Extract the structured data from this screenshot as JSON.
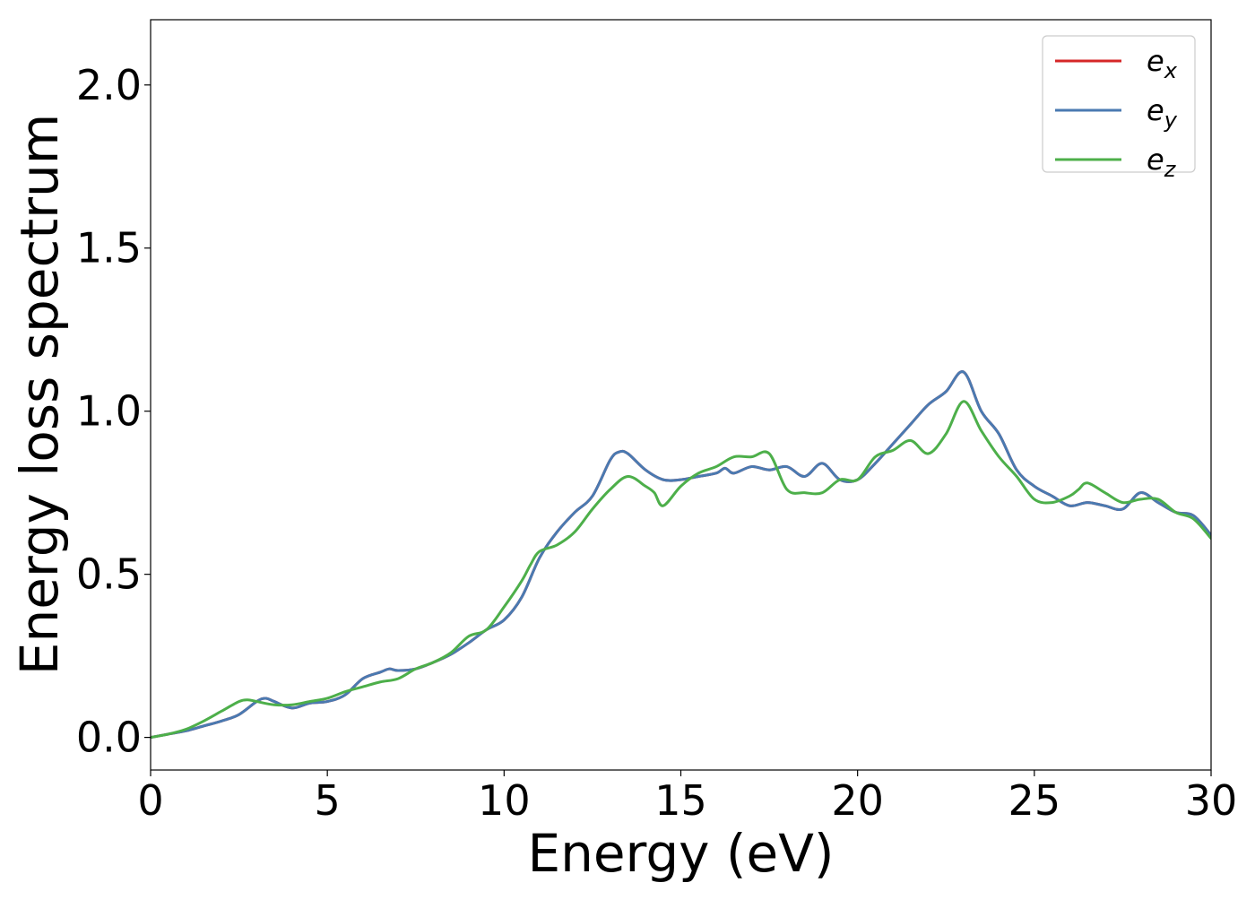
{
  "chart_data": {
    "type": "line",
    "title": "",
    "xlabel": "Energy (eV)",
    "ylabel": "Energy loss spectrum",
    "xlim": [
      0,
      30
    ],
    "ylim": [
      -0.1,
      2.2
    ],
    "xticks": [
      0,
      5,
      10,
      15,
      20,
      25,
      30
    ],
    "xtick_labels": [
      "0",
      "5",
      "10",
      "15",
      "20",
      "25",
      "30"
    ],
    "yticks": [
      0.0,
      0.5,
      1.0,
      1.5,
      2.0
    ],
    "ytick_labels": [
      "0.0",
      "0.5",
      "1.0",
      "1.5",
      "2.0"
    ],
    "grid": false,
    "legend_position": "top-right",
    "series": [
      {
        "name": "e",
        "subscript": "x",
        "color": "#d62728",
        "x": [
          0,
          0.5,
          1,
          1.5,
          2,
          2.5,
          3,
          3.25,
          3.5,
          4,
          4.5,
          5,
          5.5,
          6,
          6.5,
          6.75,
          7,
          7.5,
          8,
          8.5,
          9,
          9.5,
          10,
          10.5,
          11,
          11.5,
          12,
          12.5,
          13,
          13.25,
          13.5,
          14,
          14.5,
          15,
          15.5,
          16,
          16.25,
          16.5,
          17,
          17.5,
          18,
          18.5,
          19,
          19.5,
          20,
          20.5,
          21,
          21.5,
          22,
          22.5,
          23,
          23.5,
          24,
          24.5,
          25,
          25.5,
          26,
          26.5,
          27,
          27.5,
          28,
          28.5,
          29,
          29.5,
          30
        ],
        "y": [
          0.0,
          0.01,
          0.02,
          0.035,
          0.05,
          0.07,
          0.11,
          0.12,
          0.11,
          0.09,
          0.105,
          0.11,
          0.13,
          0.18,
          0.2,
          0.21,
          0.205,
          0.21,
          0.23,
          0.255,
          0.29,
          0.33,
          0.36,
          0.43,
          0.55,
          0.63,
          0.69,
          0.74,
          0.85,
          0.875,
          0.87,
          0.82,
          0.79,
          0.79,
          0.8,
          0.81,
          0.825,
          0.81,
          0.83,
          0.82,
          0.83,
          0.8,
          0.84,
          0.79,
          0.79,
          0.84,
          0.9,
          0.96,
          1.02,
          1.06,
          1.12,
          1.0,
          0.93,
          0.82,
          0.77,
          0.74,
          0.71,
          0.72,
          0.71,
          0.7,
          0.75,
          0.72,
          0.69,
          0.68,
          0.62
        ]
      },
      {
        "name": "e",
        "subscript": "y",
        "color": "#4a7ab1",
        "x": [
          0,
          0.5,
          1,
          1.5,
          2,
          2.5,
          3,
          3.25,
          3.5,
          4,
          4.5,
          5,
          5.5,
          6,
          6.5,
          6.75,
          7,
          7.5,
          8,
          8.5,
          9,
          9.5,
          10,
          10.5,
          11,
          11.5,
          12,
          12.5,
          13,
          13.25,
          13.5,
          14,
          14.5,
          15,
          15.5,
          16,
          16.25,
          16.5,
          17,
          17.5,
          18,
          18.5,
          19,
          19.5,
          20,
          20.5,
          21,
          21.5,
          22,
          22.5,
          23,
          23.5,
          24,
          24.5,
          25,
          25.5,
          26,
          26.5,
          27,
          27.5,
          28,
          28.5,
          29,
          29.5,
          30
        ],
        "y": [
          0.0,
          0.01,
          0.02,
          0.035,
          0.05,
          0.07,
          0.11,
          0.12,
          0.11,
          0.09,
          0.105,
          0.11,
          0.13,
          0.18,
          0.2,
          0.21,
          0.205,
          0.21,
          0.23,
          0.255,
          0.29,
          0.33,
          0.36,
          0.43,
          0.55,
          0.63,
          0.69,
          0.74,
          0.85,
          0.875,
          0.87,
          0.82,
          0.79,
          0.79,
          0.8,
          0.81,
          0.825,
          0.81,
          0.83,
          0.82,
          0.83,
          0.8,
          0.84,
          0.79,
          0.79,
          0.84,
          0.9,
          0.96,
          1.02,
          1.06,
          1.12,
          1.0,
          0.93,
          0.82,
          0.77,
          0.74,
          0.71,
          0.72,
          0.71,
          0.7,
          0.75,
          0.72,
          0.69,
          0.68,
          0.62
        ]
      },
      {
        "name": "e",
        "subscript": "z",
        "color": "#4daf4a",
        "x": [
          0,
          0.5,
          1,
          1.5,
          2,
          2.5,
          2.75,
          3,
          3.5,
          4,
          4.5,
          5,
          5.5,
          6,
          6.5,
          7,
          7.5,
          8,
          8.5,
          9,
          9.5,
          10,
          10.5,
          10.75,
          11,
          11.5,
          12,
          12.5,
          13,
          13.5,
          14,
          14.25,
          14.5,
          15,
          15.5,
          16,
          16.5,
          17,
          17.5,
          18,
          18.5,
          19,
          19.5,
          20,
          20.5,
          21,
          21.5,
          22,
          22.5,
          23,
          23.5,
          24,
          24.5,
          25,
          25.5,
          26,
          26.25,
          26.5,
          27,
          27.5,
          28,
          28.5,
          29,
          29.5,
          30
        ],
        "y": [
          0.0,
          0.01,
          0.025,
          0.05,
          0.08,
          0.11,
          0.115,
          0.11,
          0.1,
          0.1,
          0.11,
          0.12,
          0.14,
          0.155,
          0.17,
          0.18,
          0.21,
          0.23,
          0.26,
          0.31,
          0.33,
          0.4,
          0.48,
          0.53,
          0.57,
          0.59,
          0.63,
          0.7,
          0.76,
          0.8,
          0.77,
          0.75,
          0.71,
          0.77,
          0.81,
          0.83,
          0.86,
          0.86,
          0.87,
          0.76,
          0.75,
          0.75,
          0.79,
          0.79,
          0.86,
          0.88,
          0.91,
          0.87,
          0.93,
          1.03,
          0.94,
          0.86,
          0.8,
          0.73,
          0.72,
          0.74,
          0.76,
          0.78,
          0.75,
          0.72,
          0.73,
          0.73,
          0.69,
          0.67,
          0.61
        ]
      }
    ]
  }
}
